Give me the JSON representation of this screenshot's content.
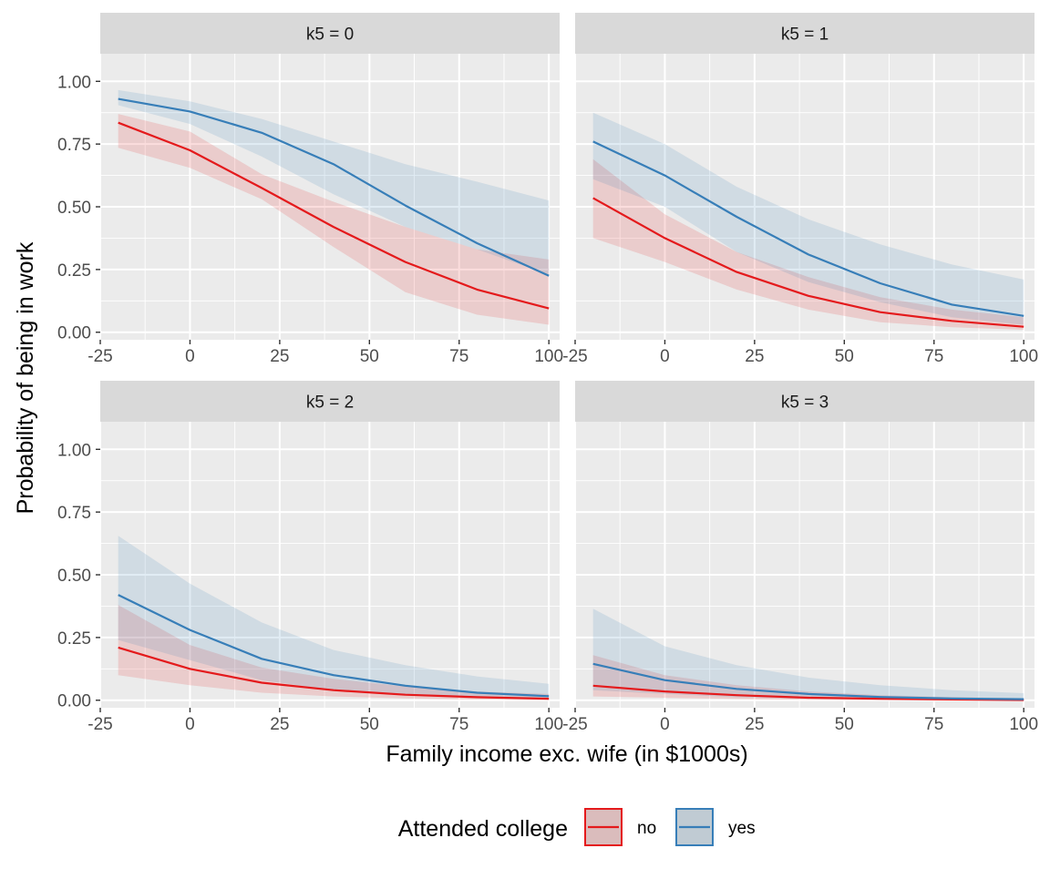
{
  "chart_data": {
    "type": "line",
    "x_label": "Family income exc. wife (in $1000s)",
    "y_label": "Probability of being in work",
    "xlim": [
      -25,
      103
    ],
    "ylim": [
      -0.03,
      1.11
    ],
    "x_ticks": [
      -25,
      0,
      25,
      50,
      75,
      100
    ],
    "x_tick_labels": [
      "-25",
      "0",
      "25",
      "50",
      "75",
      "100"
    ],
    "y_ticks": [
      0,
      0.25,
      0.5,
      0.75,
      1.0
    ],
    "y_tick_labels": [
      "0.00",
      "0.25",
      "0.50",
      "0.75",
      "1.00"
    ],
    "grid": true,
    "legend": {
      "title": "Attended college",
      "position": "bottom",
      "items": [
        {
          "label": "no",
          "color": "#e41a1c"
        },
        {
          "label": "yes",
          "color": "#377eb8"
        }
      ]
    },
    "x": [
      -20,
      0,
      20,
      40,
      60,
      80,
      100
    ],
    "panels": [
      {
        "strip": "k5 = 0",
        "series": [
          {
            "name": "no",
            "color": "#e41a1c",
            "values": [
              0.835,
              0.725,
              0.575,
              0.42,
              0.28,
              0.17,
              0.095
            ],
            "lower": [
              0.735,
              0.655,
              0.53,
              0.34,
              0.16,
              0.07,
              0.03
            ],
            "upper": [
              0.87,
              0.8,
              0.63,
              0.52,
              0.42,
              0.33,
              0.29
            ]
          },
          {
            "name": "yes",
            "color": "#377eb8",
            "values": [
              0.93,
              0.88,
              0.795,
              0.67,
              0.505,
              0.355,
              0.225
            ],
            "lower": [
              0.905,
              0.83,
              0.7,
              0.55,
              0.42,
              0.33,
              0.23
            ],
            "upper": [
              0.965,
              0.92,
              0.85,
              0.76,
              0.67,
              0.6,
              0.525
            ]
          }
        ]
      },
      {
        "strip": "k5 = 1",
        "series": [
          {
            "name": "no",
            "color": "#e41a1c",
            "values": [
              0.535,
              0.375,
              0.24,
              0.145,
              0.08,
              0.045,
              0.022
            ],
            "lower": [
              0.375,
              0.28,
              0.17,
              0.09,
              0.04,
              0.02,
              0.01
            ],
            "upper": [
              0.69,
              0.47,
              0.32,
              0.22,
              0.14,
              0.09,
              0.06
            ]
          },
          {
            "name": "yes",
            "color": "#377eb8",
            "values": [
              0.76,
              0.625,
              0.46,
              0.31,
              0.195,
              0.11,
              0.065
            ],
            "lower": [
              0.61,
              0.5,
              0.32,
              0.2,
              0.12,
              0.06,
              0.03
            ],
            "upper": [
              0.875,
              0.75,
              0.58,
              0.45,
              0.35,
              0.27,
              0.21
            ]
          }
        ]
      },
      {
        "strip": "k5 = 2",
        "series": [
          {
            "name": "no",
            "color": "#e41a1c",
            "values": [
              0.21,
              0.125,
              0.07,
              0.04,
              0.022,
              0.012,
              0.006
            ],
            "lower": [
              0.1,
              0.06,
              0.03,
              0.015,
              0.007,
              0.003,
              0.001
            ],
            "upper": [
              0.38,
              0.22,
              0.13,
              0.085,
              0.055,
              0.035,
              0.025
            ]
          },
          {
            "name": "yes",
            "color": "#377eb8",
            "values": [
              0.42,
              0.28,
              0.165,
              0.1,
              0.058,
              0.03,
              0.016
            ],
            "lower": [
              0.24,
              0.16,
              0.08,
              0.04,
              0.02,
              0.01,
              0.004
            ],
            "upper": [
              0.655,
              0.465,
              0.31,
              0.2,
              0.14,
              0.095,
              0.065
            ]
          }
        ]
      },
      {
        "strip": "k5 = 3",
        "series": [
          {
            "name": "no",
            "color": "#e41a1c",
            "values": [
              0.058,
              0.035,
              0.02,
              0.01,
              0.006,
              0.003,
              0.001
            ],
            "lower": [
              0.015,
              0.01,
              0.005,
              0.002,
              0.001,
              0.0,
              0.0
            ],
            "upper": [
              0.18,
              0.1,
              0.06,
              0.035,
              0.02,
              0.012,
              0.008
            ]
          },
          {
            "name": "yes",
            "color": "#377eb8",
            "values": [
              0.145,
              0.08,
              0.045,
              0.025,
              0.013,
              0.007,
              0.004
            ],
            "lower": [
              0.04,
              0.025,
              0.012,
              0.006,
              0.003,
              0.001,
              0.0
            ],
            "upper": [
              0.365,
              0.215,
              0.14,
              0.09,
              0.06,
              0.04,
              0.028
            ]
          }
        ]
      }
    ]
  }
}
